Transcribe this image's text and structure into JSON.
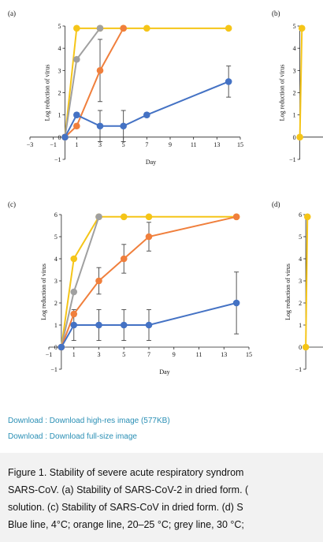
{
  "chart_data": [
    {
      "type": "line",
      "panel_label": "(a)",
      "xlabel": "Day",
      "ylabel": "Log reduction of virus",
      "xlim": [
        -3,
        15
      ],
      "ylim": [
        -1,
        5
      ],
      "xticks": [
        -3,
        -1,
        1,
        3,
        5,
        7,
        9,
        11,
        13,
        15
      ],
      "yticks": [
        -1,
        0,
        1,
        2,
        3,
        4,
        5
      ],
      "series": [
        {
          "color": "#f5c518",
          "x": [
            0,
            1,
            3,
            5,
            7,
            14
          ],
          "y": [
            0,
            4.9,
            4.9,
            4.9,
            4.9,
            4.9
          ]
        },
        {
          "color": "#a0a0a0",
          "x": [
            0,
            1,
            3
          ],
          "y": [
            0,
            3.5,
            4.9
          ]
        },
        {
          "color": "#f07f3c",
          "x": [
            0,
            1,
            3,
            5
          ],
          "y": [
            0,
            0.5,
            3.0,
            4.9
          ],
          "err": [
            0,
            0.1,
            1.4,
            0
          ]
        },
        {
          "color": "#4472c4",
          "x": [
            0,
            1,
            3,
            5,
            7,
            14
          ],
          "y": [
            0,
            1.0,
            0.5,
            0.5,
            1.0,
            2.5
          ],
          "err": [
            0,
            0.1,
            0.7,
            0.7,
            0.1,
            0.7
          ]
        }
      ]
    },
    {
      "type": "line",
      "panel_label": "(b)",
      "xlabel": "",
      "ylabel": "Log reduction of virus",
      "xlim": [
        -1,
        15
      ],
      "ylim": [
        -1,
        5
      ],
      "yticks": [
        -1,
        0,
        1,
        2,
        3,
        4,
        5
      ],
      "series": [
        {
          "color": "#f5c518",
          "x": [
            0,
            1
          ],
          "y": [
            0,
            4.9
          ]
        }
      ]
    },
    {
      "type": "line",
      "panel_label": "(c)",
      "xlabel": "Day",
      "ylabel": "Log reduction of virus",
      "xlim": [
        -1,
        15
      ],
      "ylim": [
        -1,
        6
      ],
      "xticks": [
        -1,
        1,
        3,
        5,
        7,
        9,
        11,
        13,
        15
      ],
      "yticks": [
        -1,
        0,
        1,
        2,
        3,
        4,
        5,
        6
      ],
      "series": [
        {
          "color": "#f5c518",
          "x": [
            0,
            1,
            3,
            5,
            7,
            14
          ],
          "y": [
            0,
            4.0,
            5.9,
            5.9,
            5.9,
            5.9
          ]
        },
        {
          "color": "#a0a0a0",
          "x": [
            0,
            1,
            3
          ],
          "y": [
            0,
            2.5,
            5.9
          ]
        },
        {
          "color": "#f07f3c",
          "x": [
            0,
            1,
            3,
            5,
            7,
            14
          ],
          "y": [
            0,
            1.5,
            3.0,
            4.0,
            5.0,
            5.9
          ],
          "err": [
            0,
            0.1,
            0.6,
            0.65,
            0.65,
            0
          ]
        },
        {
          "color": "#4472c4",
          "x": [
            0,
            1,
            3,
            5,
            7,
            14
          ],
          "y": [
            0,
            1.0,
            1.0,
            1.0,
            1.0,
            2.0
          ],
          "err": [
            0,
            0.7,
            0.7,
            0.7,
            0.7,
            1.4
          ]
        }
      ]
    },
    {
      "type": "line",
      "panel_label": "(d)",
      "xlabel": "",
      "ylabel": "Log reduction of virus",
      "xlim": [
        -1,
        15
      ],
      "ylim": [
        -1,
        6
      ],
      "yticks": [
        -1,
        0,
        1,
        2,
        3,
        4,
        5,
        6
      ],
      "series": [
        {
          "color": "#f5c518",
          "x": [
            0,
            1
          ],
          "y": [
            0,
            5.9
          ]
        }
      ]
    }
  ],
  "links": {
    "highres": "Download : Download high-res image (577KB)",
    "fullsize": "Download : Download full-size image"
  },
  "caption": {
    "line1": "Figure 1. Stability of severe acute respiratory syndrom",
    "line2": "SARS-CoV. (a) Stability of SARS-CoV-2 in dried form. (",
    "line3": "solution. (c) Stability of SARS-CoV in dried form. (d) S",
    "line4": "Blue line, 4°C; orange line, 20–25 °C; grey line, 30 °C;"
  }
}
